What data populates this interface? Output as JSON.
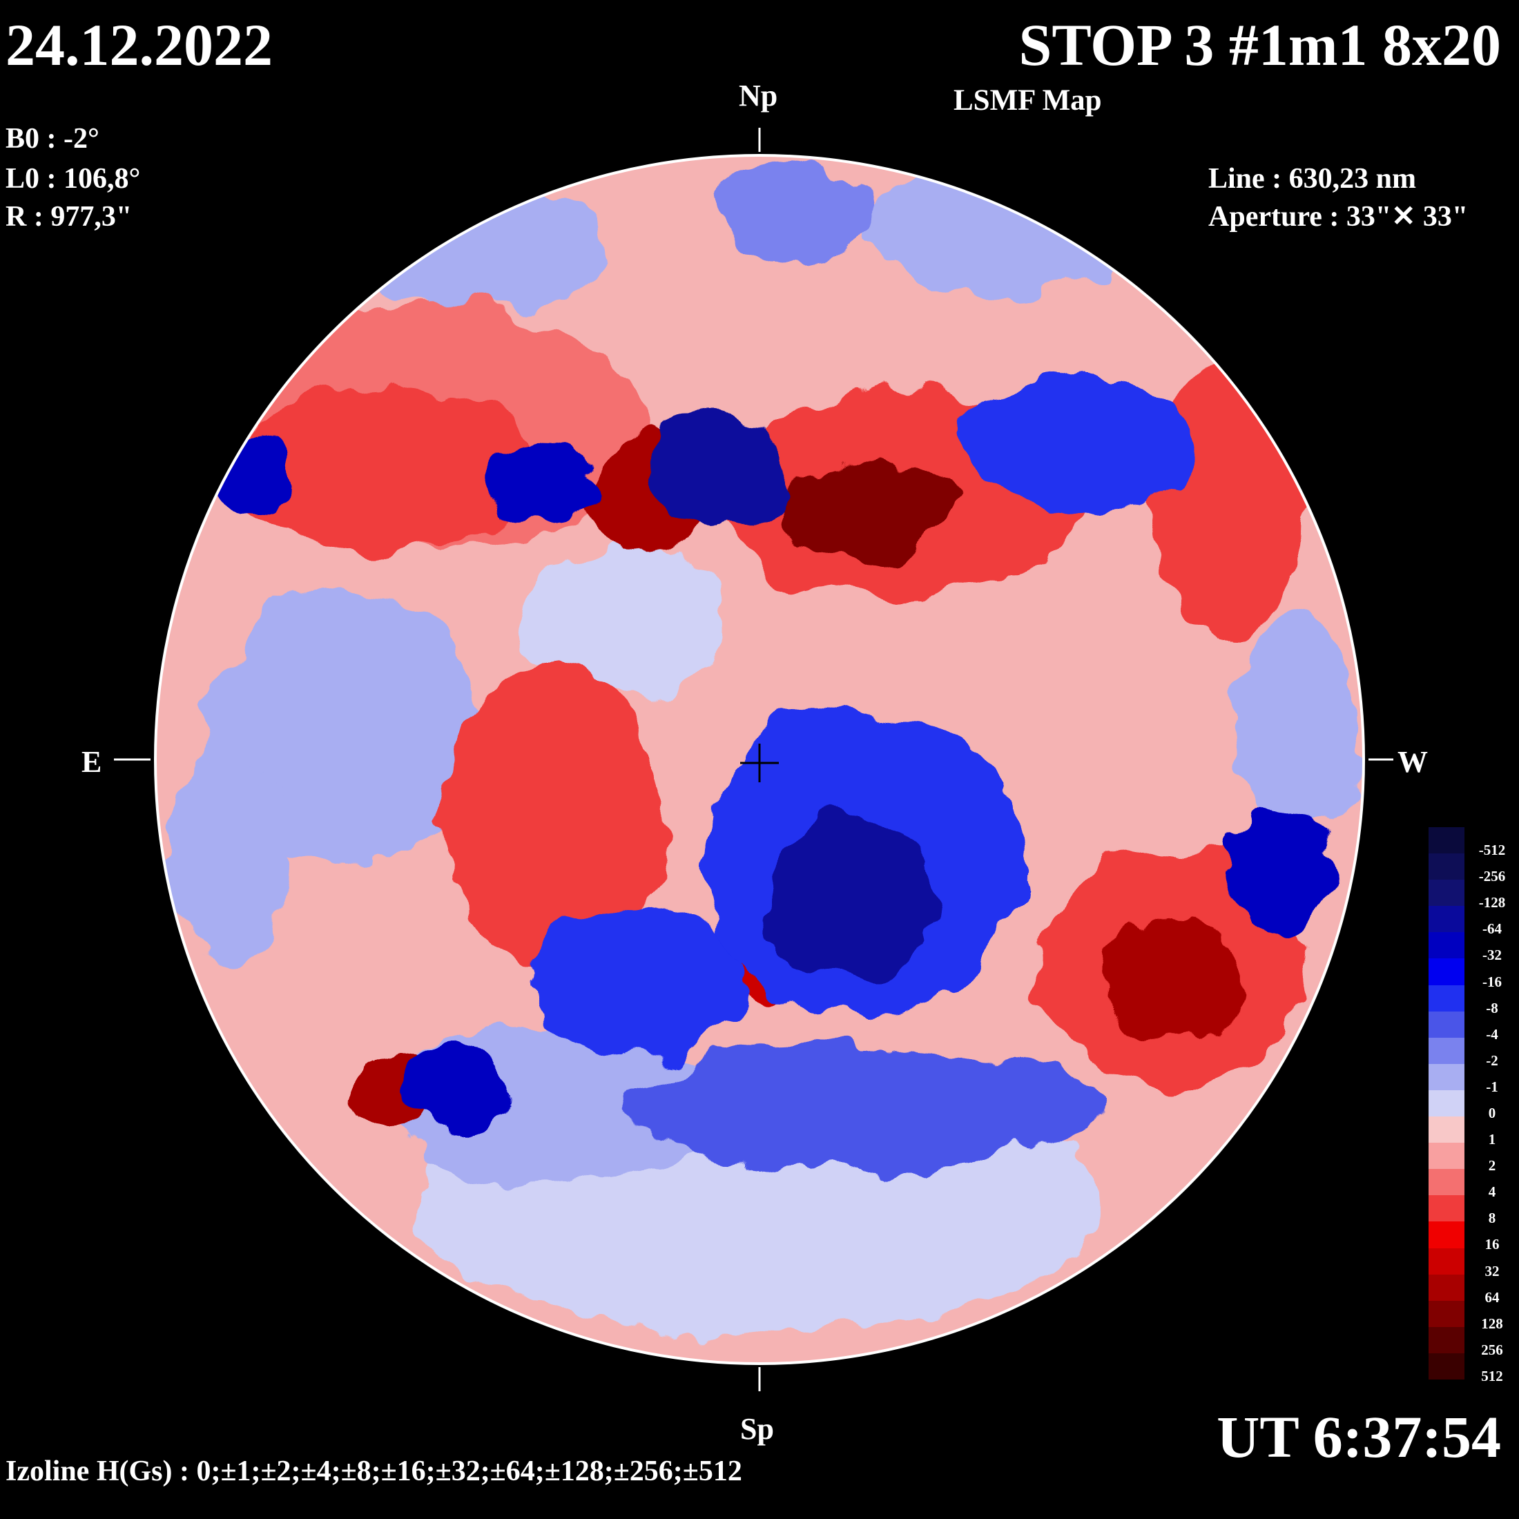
{
  "header": {
    "date": "24.12.2022",
    "title": "STOP 3 #1m1 8x20",
    "subtitle": "LSMF  Map"
  },
  "params": {
    "b0": "B0 : -2°",
    "l0": "L0 : 106,8°",
    "r": "R  : 977,3\""
  },
  "instrument": {
    "line": "Line :  630,23 nm",
    "aperture": "Aperture : 33\"✕ 33\""
  },
  "directions": {
    "north": "Np",
    "south": "Sp",
    "east": "E",
    "west": "W"
  },
  "time": "UT 6:37:54",
  "izoline": "Izoline H(Gs) : 0;±1;±2;±4;±8;±16;±32;±64;±128;±256;±512",
  "scale": {
    "labels": [
      "-512",
      "-256",
      "-128",
      "-64",
      "-32",
      "-16",
      "-8",
      "-4",
      "-2",
      "-1",
      "0",
      "1",
      "2",
      "4",
      "8",
      "16",
      "32",
      "64",
      "128",
      "256",
      "512"
    ],
    "colors": [
      "#0a0a3c",
      "#0e0e56",
      "#111170",
      "#0a0a9c",
      "#0000c0",
      "#0000f0",
      "#2030f0",
      "#4a55e8",
      "#7a82ee",
      "#a8aef2",
      "#d0d2f6",
      "#f8c8c8",
      "#f8a0a0",
      "#f47070",
      "#f03c3c",
      "#f00000",
      "#cc0000",
      "#a80000",
      "#800000",
      "#5a0000",
      "#3a0000"
    ]
  },
  "colors": {
    "background": "#000000",
    "disk_base": "#f5b3b3",
    "strong_negative": "#0a0a9c",
    "strong_positive": "#cc0000"
  }
}
